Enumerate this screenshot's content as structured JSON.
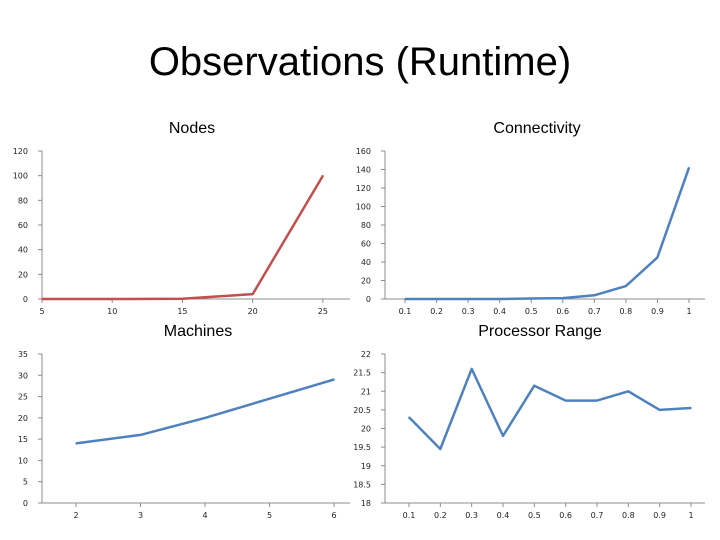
{
  "page": {
    "title": "Observations (Runtime)"
  },
  "chart_data": [
    {
      "type": "line",
      "title": "Nodes",
      "x": [
        5,
        10,
        15,
        20,
        25
      ],
      "series": [
        {
          "color": "#c0504d",
          "values": [
            0,
            0,
            0.2,
            4,
            100
          ]
        }
      ],
      "ylim": [
        0,
        120
      ],
      "yticks": [
        "0",
        "20",
        "40",
        "60",
        "80",
        "100",
        "120"
      ],
      "xticks": [
        "5",
        "10",
        "15",
        "20",
        "25"
      ],
      "grid": false
    },
    {
      "type": "line",
      "title": "Connectivity",
      "x": [
        "0.1",
        "0.2",
        "0.3",
        "0.4",
        "0.5",
        "0.6",
        "0.7",
        "0.8",
        "0.9",
        "1"
      ],
      "series": [
        {
          "color": "#4f81bd",
          "values": [
            0,
            0,
            0,
            0,
            0.5,
            1,
            4,
            14,
            45,
            142
          ]
        }
      ],
      "ylim": [
        0,
        160
      ],
      "yticks": [
        "0",
        "20",
        "40",
        "60",
        "80",
        "100",
        "120",
        "140",
        "160"
      ],
      "xticks": [
        "0.1",
        "0.2",
        "0.3",
        "0.4",
        "0.5",
        "0.6",
        "0.7",
        "0.8",
        "0.9",
        "1"
      ],
      "grid": false
    },
    {
      "type": "line",
      "title": "Machines",
      "x": [
        "2",
        "3",
        "4",
        "5",
        "6"
      ],
      "series": [
        {
          "color": "#4f81bd",
          "values": [
            14,
            16,
            20,
            24.5,
            29
          ]
        }
      ],
      "ylim": [
        0,
        35
      ],
      "yticks": [
        "0",
        "5",
        "10",
        "15",
        "20",
        "25",
        "30",
        "35"
      ],
      "xticks": [
        "2",
        "3",
        "4",
        "5",
        "6"
      ],
      "grid": false
    },
    {
      "type": "line",
      "title": "Processor Range",
      "x": [
        "0.1",
        "0.2",
        "0.3",
        "0.4",
        "0.5",
        "0.6",
        "0.7",
        "0.8",
        "0.9",
        "1"
      ],
      "series": [
        {
          "color": "#4f81bd",
          "values": [
            20.3,
            19.45,
            21.6,
            19.8,
            21.15,
            20.75,
            20.75,
            21.0,
            20.5,
            20.55
          ]
        }
      ],
      "ylim": [
        18,
        22
      ],
      "yticks": [
        "18",
        "18.5",
        "19",
        "19.5",
        "20",
        "20.5",
        "21",
        "21.5",
        "22"
      ],
      "xticks": [
        "0.1",
        "0.2",
        "0.3",
        "0.4",
        "0.5",
        "0.6",
        "0.7",
        "0.8",
        "0.9",
        "1"
      ],
      "grid": false
    }
  ]
}
